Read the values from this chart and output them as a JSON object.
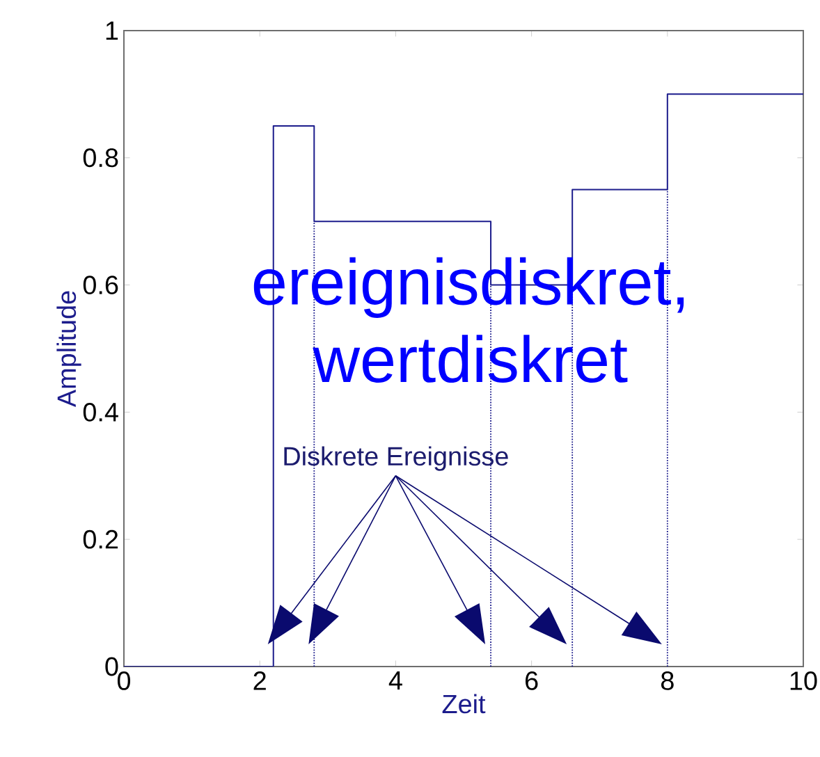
{
  "chart_data": {
    "type": "step",
    "xlabel": "Zeit",
    "ylabel": "Amplitude",
    "x": [
      0,
      2.2,
      2.8,
      5.4,
      6.6,
      8,
      10
    ],
    "series": [
      {
        "color": "#1c1c8c",
        "values": [
          0,
          0.85,
          0.7,
          0.6,
          0.75,
          0.9,
          0.9
        ]
      }
    ],
    "xlim": [
      0,
      10
    ],
    "xticks": [
      0,
      2,
      4,
      6,
      8,
      10
    ],
    "ylim": [
      0,
      1
    ],
    "yticks": [
      0,
      0.2,
      0.4,
      0.6,
      0.8,
      1
    ],
    "grid": false,
    "marker": "none",
    "line_style": "solid",
    "ref_lines": [
      {
        "axis": "x",
        "value": 2.8,
        "color": "#1c1c8c",
        "line_style": "dotted"
      },
      {
        "axis": "x",
        "value": 5.4,
        "color": "#1c1c8c",
        "line_style": "dotted"
      },
      {
        "axis": "x",
        "value": 6.6,
        "color": "#1c1c8c",
        "line_style": "dotted"
      },
      {
        "axis": "x",
        "value": 8,
        "color": "#1c1c8c",
        "line_style": "dotted"
      }
    ],
    "annotations": [
      "ereignisdiskret, wertdiskret",
      "Diskrete Ereignisse"
    ]
  }
}
